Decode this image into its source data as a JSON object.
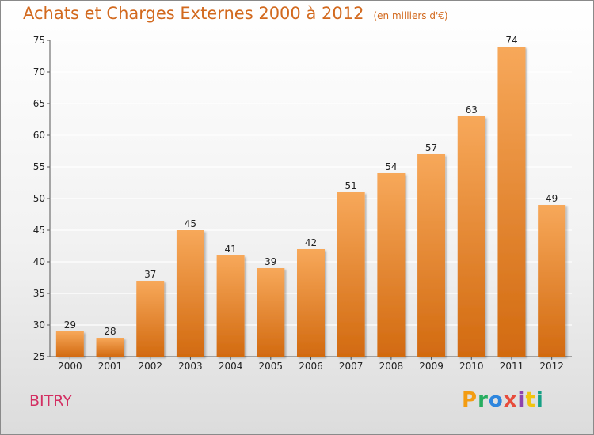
{
  "header": {
    "title": "Achats et Charges Externes 2000 à 2012",
    "subtitle": "(en milliers d'€)"
  },
  "footer": {
    "commune": "BITRY",
    "brand": [
      "P",
      "r",
      "o",
      "x",
      "i",
      "t",
      "i"
    ],
    "brand_colors": [
      "#f39c12",
      "#27ae60",
      "#2e86de",
      "#e74c3c",
      "#8e44ad",
      "#f1c40f",
      "#16a085"
    ]
  },
  "colors": {
    "title": "#d2691e",
    "bar_top": "#f7a85a",
    "bar_bottom": "#d26a10",
    "commune": "#d32f62",
    "grid": "#ffffff"
  },
  "chart_data": {
    "type": "bar",
    "categories": [
      "2000",
      "2001",
      "2002",
      "2003",
      "2004",
      "2005",
      "2006",
      "2007",
      "2008",
      "2009",
      "2010",
      "2011",
      "2012"
    ],
    "values": [
      29,
      28,
      37,
      45,
      41,
      39,
      42,
      51,
      54,
      57,
      63,
      74,
      49
    ],
    "title": "Achats et Charges Externes 2000 à 2012",
    "subtitle": "(en milliers d'€)",
    "xlabel": "",
    "ylabel": "",
    "ylim": [
      25,
      75
    ],
    "yticks": [
      25,
      30,
      35,
      40,
      45,
      50,
      55,
      60,
      65,
      70,
      75
    ],
    "grid": true,
    "data_labels": true
  }
}
